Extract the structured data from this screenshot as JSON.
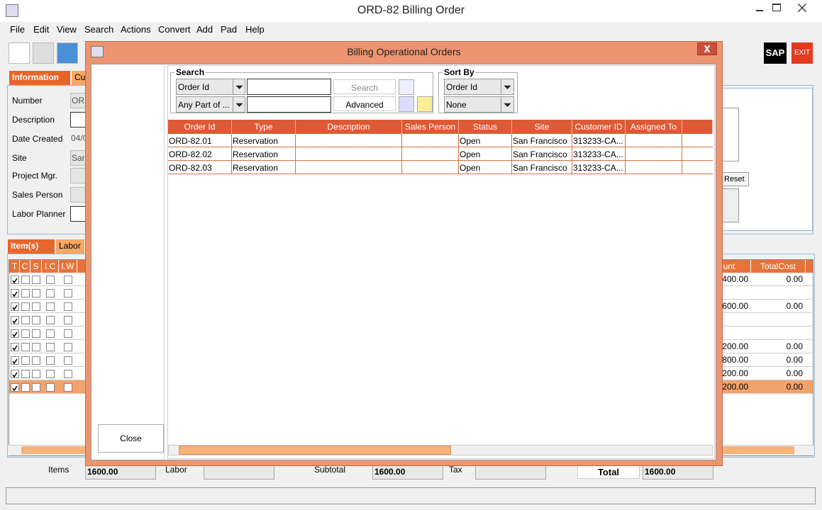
{
  "window": {
    "title": "ORD-82 Billing Order"
  },
  "menu": [
    "File",
    "Edit",
    "View",
    "Search",
    "Actions",
    "Convert",
    "Add",
    "Pad",
    "Help"
  ],
  "toolbar": {
    "sap": "SAP",
    "exit": "EXIT"
  },
  "main_tabs": [
    "Information",
    "Cu"
  ],
  "fields": {
    "labels": [
      "Number",
      "Description",
      "Date Created",
      "Site",
      "Project Mgr.",
      "Sales Person",
      "Labor Planner"
    ],
    "number": "OR",
    "date_created": "04/0",
    "site": "Sar"
  },
  "reset": "Reset",
  "item_tabs": [
    "Item(s)",
    "Labor"
  ],
  "items_table": {
    "headers_left": [
      "T",
      "C",
      "S",
      "I.C",
      "I.W"
    ],
    "headers_right": [
      "ount",
      "TotalCost"
    ],
    "rows": [
      [
        "400.00",
        "0.00"
      ],
      null,
      [
        "600.00",
        "0.00"
      ],
      null,
      null,
      [
        "200.00",
        "0.00"
      ],
      [
        "800.00",
        "0.00"
      ],
      [
        "200.00",
        "0.00"
      ],
      [
        "200.00",
        "0.00"
      ]
    ]
  },
  "totals": {
    "items_label": "Items",
    "items": "1600.00",
    "labor_label": "Labor",
    "subtotal_label": "Subtotal",
    "subtotal": "1600.00",
    "tax_label": "Tax",
    "total_label": "Total",
    "total": "1600.00"
  },
  "dialog": {
    "title": "Billing Operational Orders",
    "search_label": "Search",
    "search_field": "Order Id",
    "match": "Any Part of ...",
    "search_button": "Search",
    "advanced_button": "Advanced",
    "sort_label": "Sort By",
    "sort_field": "Order Id",
    "sort_order": "None",
    "columns": [
      "Order Id",
      "Type",
      "Description",
      "Sales Person",
      "Status",
      "Site",
      "Customer ID",
      "Assigned To"
    ],
    "rows": [
      [
        "ORD-82.01",
        "Reservation",
        null,
        null,
        "Open",
        "San Francisco",
        "313233-CA...",
        null
      ],
      [
        "ORD-82.02",
        "Reservation",
        null,
        null,
        "Open",
        "San Francisco",
        "313233-CA...",
        null
      ],
      [
        "ORD-82.03",
        "Reservation",
        null,
        null,
        "Open",
        "San Francisco",
        "313233-CA...",
        null
      ]
    ],
    "close": "Close"
  }
}
